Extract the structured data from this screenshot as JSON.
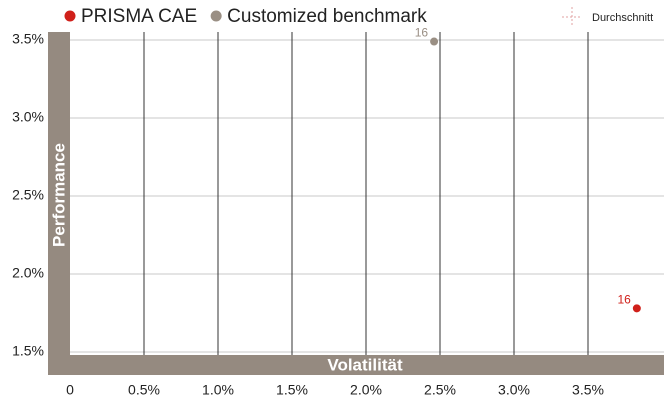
{
  "chart_data": {
    "type": "scatter",
    "xlabel": "Volatilität",
    "ylabel": "Performance",
    "legend_average": "Durchschnitt",
    "xlim": [
      0,
      4.0
    ],
    "ylim": [
      1.5,
      3.5
    ],
    "xticks": [
      0,
      {
        "value": 0.5,
        "label": "0.5%"
      },
      {
        "value": 1.0,
        "label": "1.0%"
      },
      {
        "value": 1.5,
        "label": "1.5%"
      },
      {
        "value": 2.0,
        "label": "2.0%"
      },
      {
        "value": 2.5,
        "label": "2.5%"
      },
      {
        "value": 3.0,
        "label": "3.0%"
      },
      {
        "value": 3.5,
        "label": "3.5%"
      }
    ],
    "yticks": [
      {
        "value": 1.5,
        "label": "1.5%"
      },
      {
        "value": 2.0,
        "label": "2.0%"
      },
      {
        "value": 2.5,
        "label": "2.5%"
      },
      {
        "value": 3.0,
        "label": "3.0%"
      },
      {
        "value": 3.5,
        "label": "3.5%"
      }
    ],
    "series": [
      {
        "name": "PRISMA CAE",
        "color": "#d0201a",
        "x": [
          3.83
        ],
        "values": [
          1.78
        ],
        "point_labels": [
          "16"
        ]
      },
      {
        "name": "Customized benchmark",
        "color": "#9a8f84",
        "x": [
          2.46
        ],
        "values": [
          3.49
        ],
        "point_labels": [
          "16"
        ]
      }
    ]
  }
}
